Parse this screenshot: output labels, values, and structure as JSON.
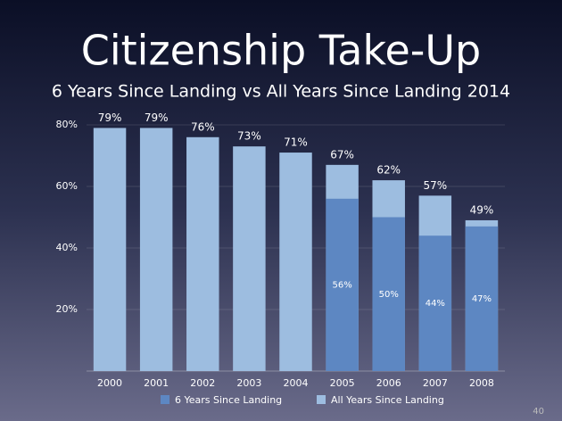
{
  "chart_data": {
    "type": "bar",
    "title": "Citizenship Take-Up",
    "subtitle": "6 Years Since Landing vs All Years Since Landing 2014",
    "categories": [
      "2000",
      "2001",
      "2002",
      "2003",
      "2004",
      "2005",
      "2006",
      "2007",
      "2008"
    ],
    "series": [
      {
        "name": "All Years Since Landing",
        "color": "#9dbde0",
        "values": [
          79,
          79,
          76,
          73,
          71,
          67,
          62,
          57,
          49
        ],
        "value_labels": [
          "79%",
          "79%",
          "76%",
          "73%",
          "71%",
          "67%",
          "62%",
          "57%",
          "49%"
        ]
      },
      {
        "name": "6 Years Since Landing",
        "color": "#5d87c2",
        "values": [
          null,
          null,
          null,
          null,
          null,
          56,
          50,
          44,
          47
        ],
        "value_labels": [
          null,
          null,
          null,
          null,
          null,
          "56%",
          "50%",
          "44%",
          "47%"
        ]
      }
    ],
    "ylim": [
      0,
      80
    ],
    "yticks": [
      {
        "value": 20,
        "label": "20%"
      },
      {
        "value": 40,
        "label": "40%"
      },
      {
        "value": 60,
        "label": "60%"
      },
      {
        "value": 80,
        "label": "80%"
      }
    ],
    "grid": true
  },
  "slide_number": "40"
}
